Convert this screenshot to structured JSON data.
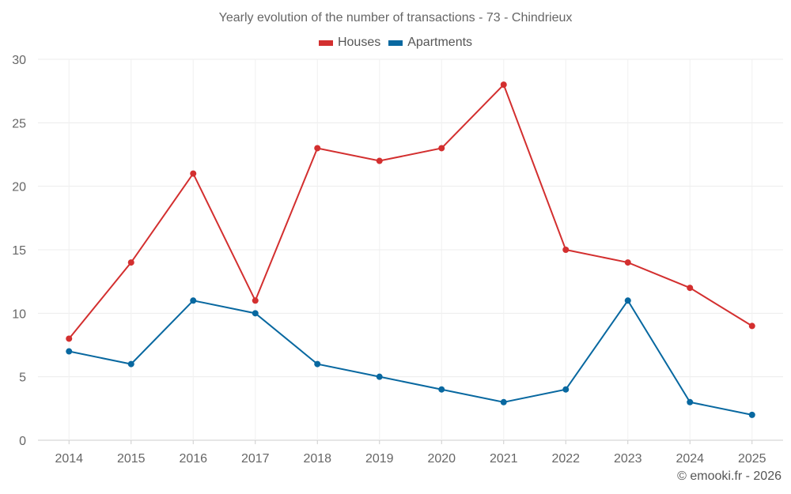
{
  "chart_data": {
    "type": "line",
    "title": "Yearly evolution of the number of transactions - 73 - Chindrieux",
    "categories": [
      "2014",
      "2015",
      "2016",
      "2017",
      "2018",
      "2019",
      "2020",
      "2021",
      "2022",
      "2023",
      "2024",
      "2025"
    ],
    "series": [
      {
        "name": "Houses",
        "color": "#d32f2f",
        "values": [
          8,
          14,
          21,
          11,
          23,
          22,
          23,
          28,
          15,
          14,
          12,
          9
        ]
      },
      {
        "name": "Apartments",
        "color": "#0868a0",
        "values": [
          7,
          6,
          11,
          10,
          6,
          5,
          4,
          3,
          4,
          11,
          3,
          2
        ]
      }
    ],
    "ylim": [
      0,
      30
    ],
    "yticks": [
      "0",
      "5",
      "10",
      "15",
      "20",
      "25",
      "30"
    ],
    "grid": true,
    "legend": "top-center"
  },
  "credit": "© emooki.fr - 2026"
}
